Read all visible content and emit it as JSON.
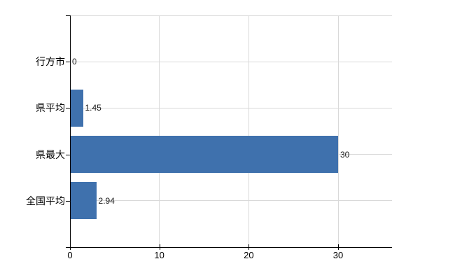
{
  "chart_data": {
    "type": "bar",
    "orientation": "horizontal",
    "categories": [
      "行方市",
      "県平均",
      "県最大",
      "全国平均"
    ],
    "values": [
      0,
      1.45,
      30,
      2.94
    ],
    "value_labels": [
      "0",
      "1.45",
      "30",
      "2.94"
    ],
    "x_ticks": [
      0,
      10,
      20,
      30
    ],
    "x_tick_labels": [
      "0",
      "10",
      "20",
      "30"
    ],
    "xlim": [
      0,
      36
    ],
    "grid": {
      "vertical": true,
      "horizontal_per_category": true,
      "top_border": true
    },
    "legend": "none",
    "colors": {
      "bar": "#3f71ad",
      "grid": "#d9d9d9",
      "axis": "#000000",
      "value_label": "#1a1a1a",
      "tick_label": "#000000",
      "background": "#ffffff"
    }
  }
}
